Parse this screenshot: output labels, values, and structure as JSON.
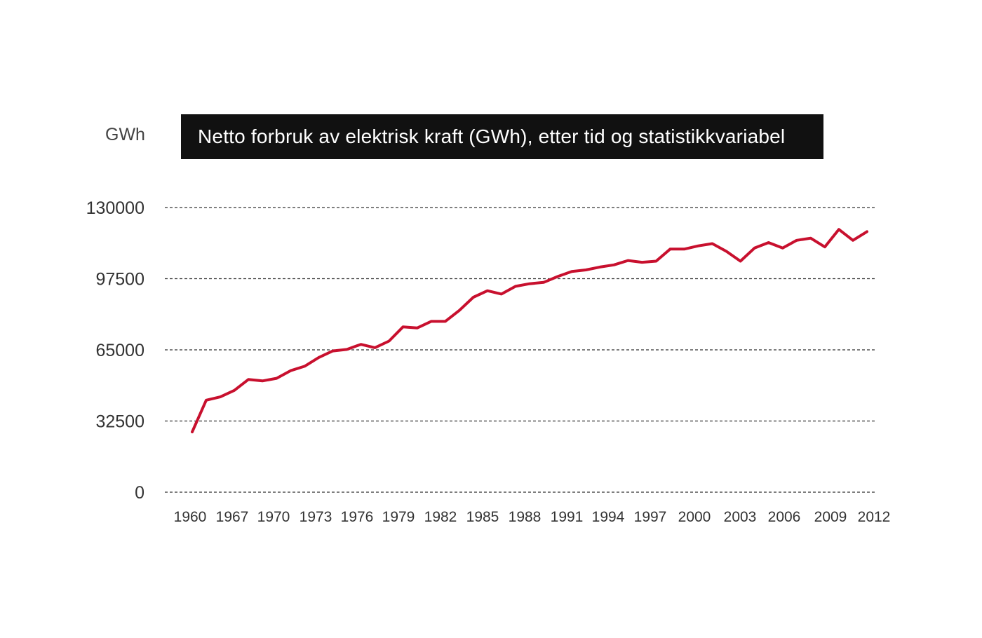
{
  "chart_data": {
    "type": "line",
    "title": "Netto forbruk av elektrisk kraft (GWh), etter tid og statistikkvariabel",
    "ylabel": "GWh",
    "xlabel": "",
    "ylim": [
      0,
      130000
    ],
    "yticks": [
      "130000",
      "97500",
      "65000",
      "32500",
      "0"
    ],
    "ytick_values": [
      130000,
      97500,
      65000,
      32500,
      0
    ],
    "xtick_labels": [
      "1960",
      "1967",
      "1970",
      "1973",
      "1976",
      "1979",
      "1982",
      "1985",
      "1988",
      "1991",
      "1994",
      "1997",
      "2000",
      "2003",
      "2006",
      "2009",
      "2012"
    ],
    "grid": true,
    "line_color": "#c8102e",
    "series": [
      {
        "values": [
          27500,
          42000,
          43500,
          46500,
          51500,
          50800,
          52000,
          55500,
          57500,
          61500,
          64500,
          65200,
          67500,
          66000,
          69000,
          75500,
          75000,
          78000,
          78000,
          83000,
          89000,
          92000,
          90500,
          94000,
          95200,
          95800,
          98500,
          100800,
          101500,
          102800,
          103800,
          105800,
          105000,
          105500,
          111000,
          111000,
          112500,
          113500,
          110000,
          105500,
          111500,
          114000,
          111500,
          115000,
          116000,
          112000,
          120000,
          115000,
          119000
        ]
      }
    ]
  }
}
